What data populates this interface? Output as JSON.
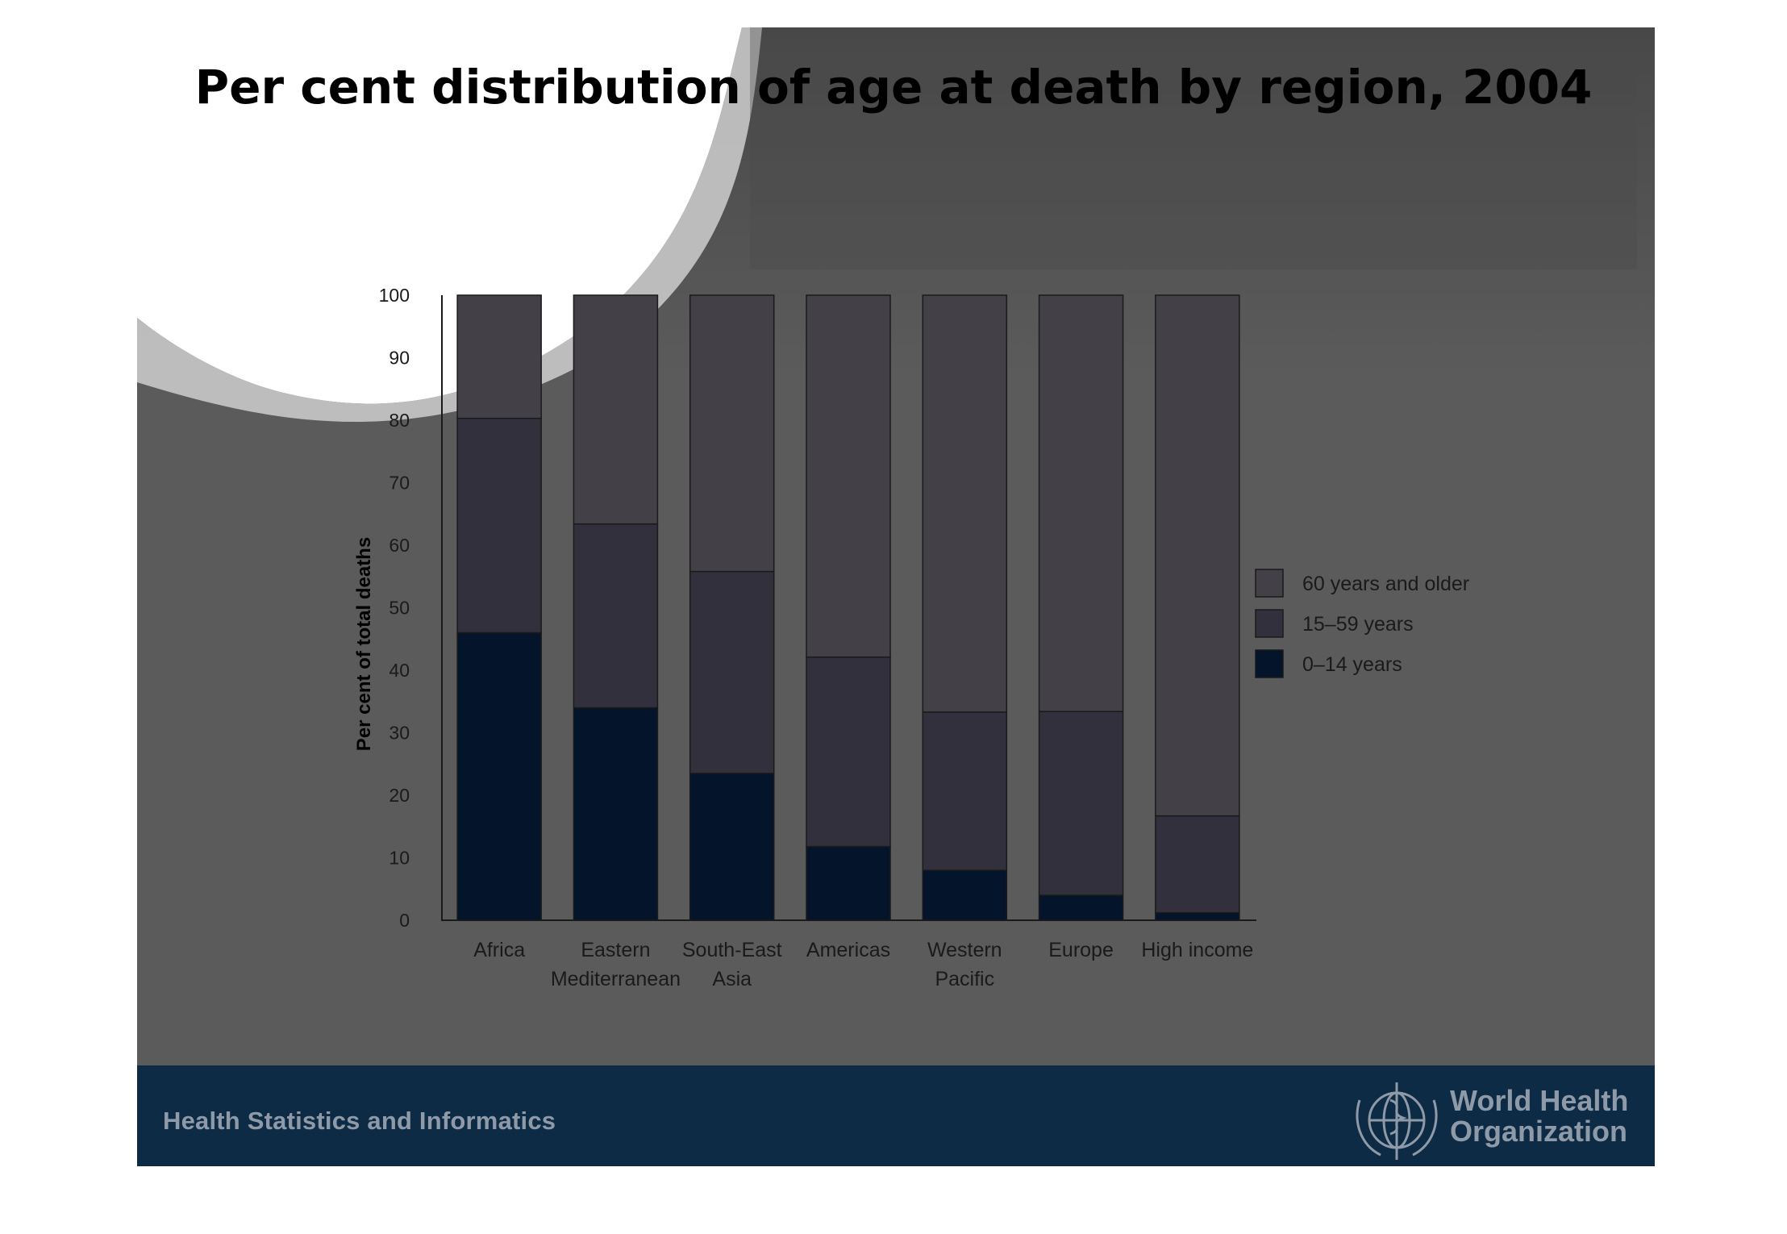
{
  "footer": {
    "left_text": "Health Statistics and Informatics",
    "logo_line1": "World Health",
    "logo_line2": "Organization"
  },
  "colors": {
    "age_60_plus": "#434147",
    "age_15_59": "#33303d",
    "age_0_14": "#03142b",
    "footer_bar": "#0d2b44",
    "slide_background": "#5b5b5b"
  },
  "chart_data": {
    "type": "bar",
    "stacked": true,
    "title": "Per cent distribution of age at death by region, 2004",
    "ylabel": "Per cent of total deaths",
    "xlabel": "",
    "ylim": [
      0,
      100
    ],
    "yticks": [
      0,
      10,
      20,
      30,
      40,
      50,
      60,
      70,
      80,
      90,
      100
    ],
    "categories": [
      [
        "Africa"
      ],
      [
        "Eastern",
        "Mediterranean"
      ],
      [
        "South-East",
        "Asia"
      ],
      [
        "Americas"
      ],
      [
        "Western",
        "Pacific"
      ],
      [
        "Europe"
      ],
      [
        "High income"
      ]
    ],
    "series": [
      {
        "name": "0–14 years",
        "values": [
          46,
          34,
          23.5,
          11.8,
          8,
          4,
          1.2
        ]
      },
      {
        "name": "15–59 years",
        "values": [
          34.3,
          29.4,
          32.3,
          30.3,
          25.3,
          29.4,
          15.5
        ]
      },
      {
        "name": "60 years and older",
        "values": [
          19.7,
          36.6,
          44.2,
          57.9,
          66.7,
          66.6,
          83.3
        ]
      }
    ],
    "legend": {
      "position": "right",
      "items": [
        "60 years and older",
        "15–59 years",
        "0–14 years"
      ]
    }
  }
}
